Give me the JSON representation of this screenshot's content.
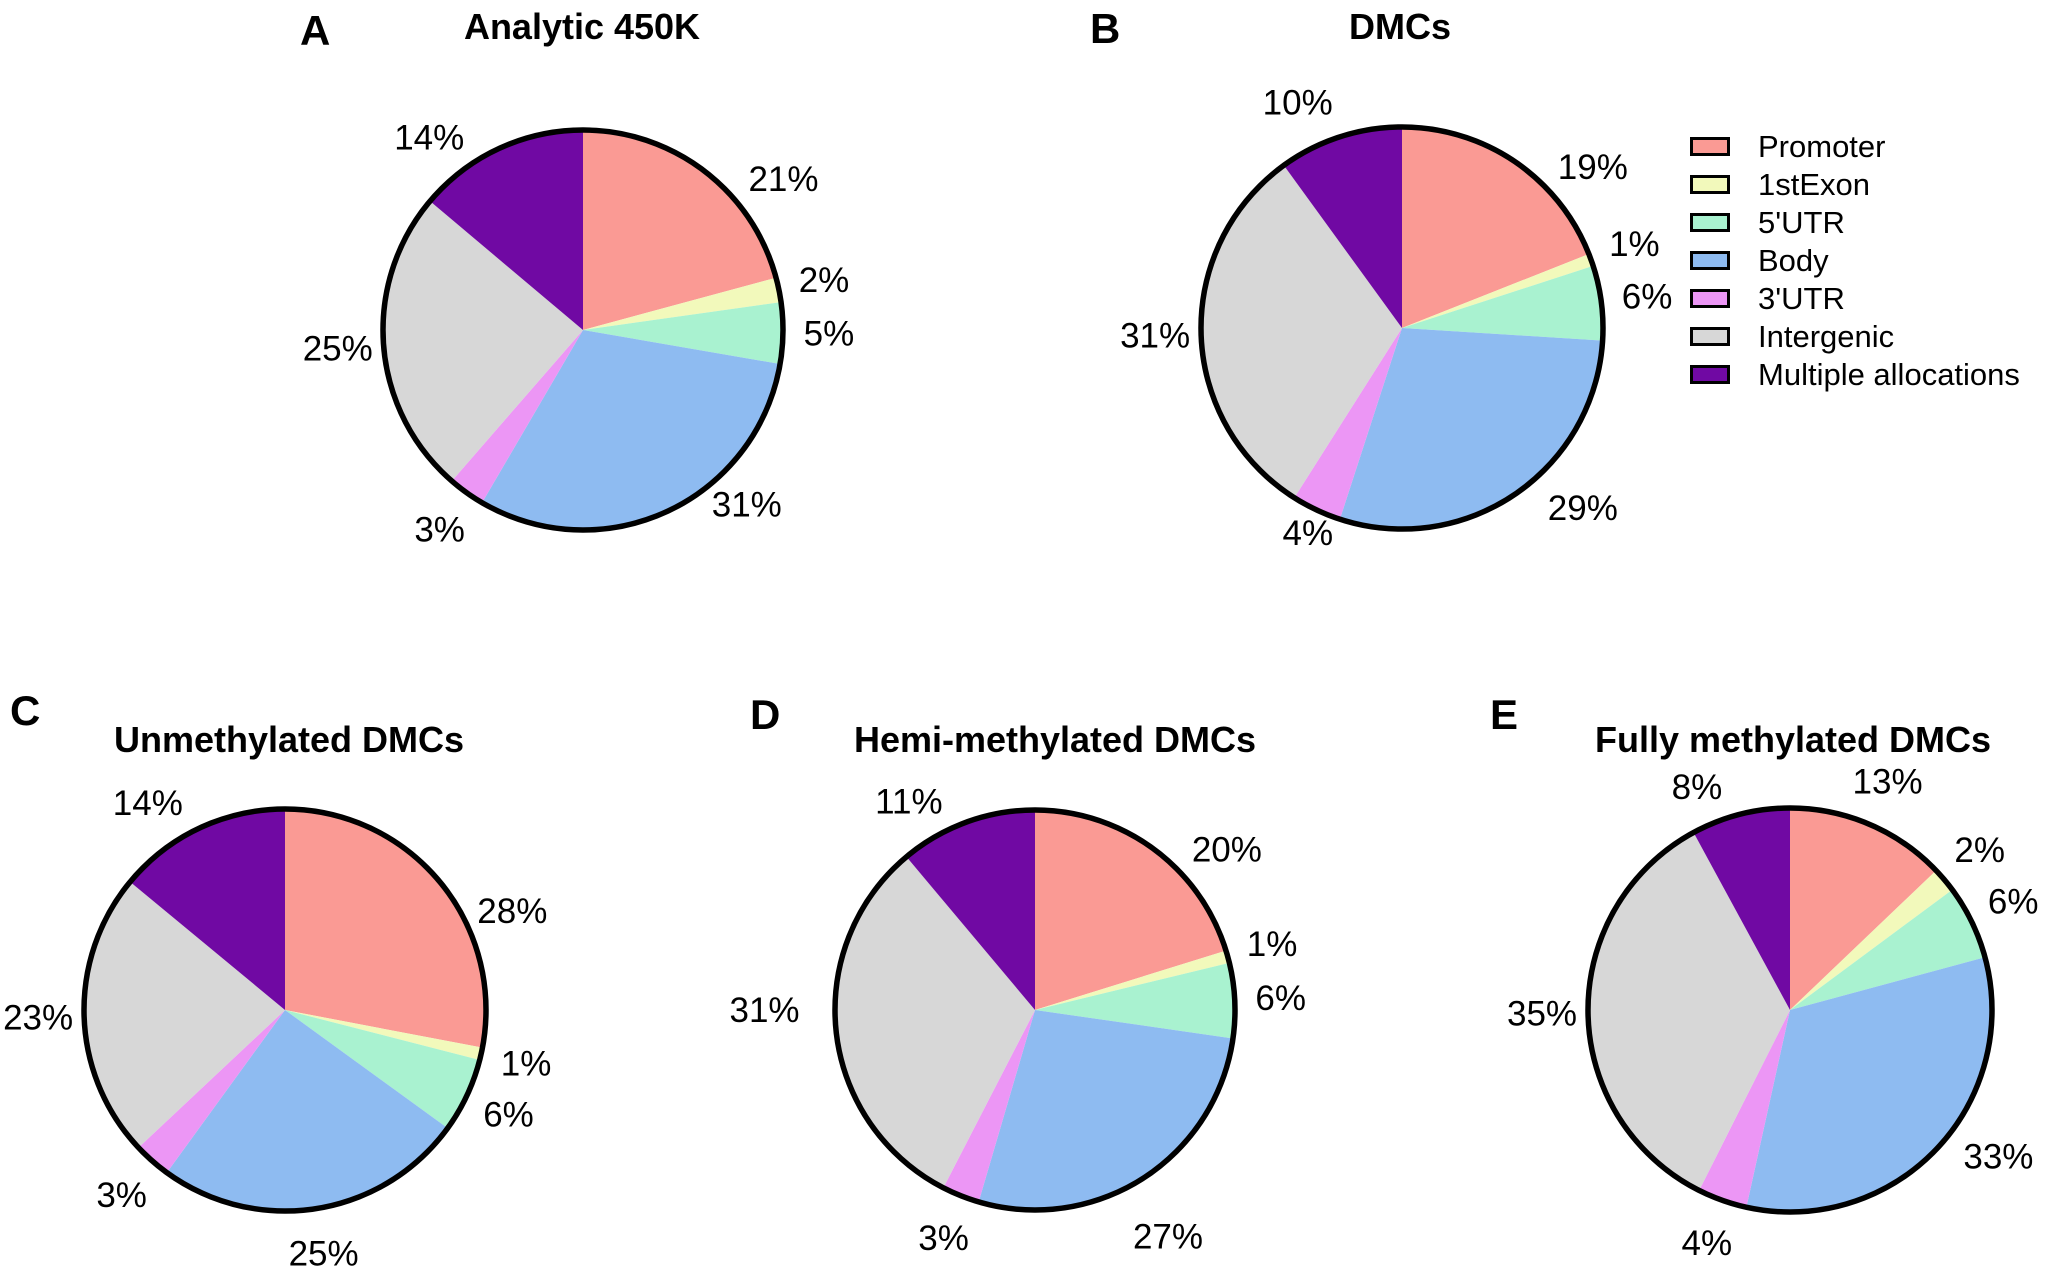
{
  "legend": {
    "position": "top-right",
    "items": [
      {
        "label": "Promoter",
        "color": "#FA9A94"
      },
      {
        "label": "1stExon",
        "color": "#F2F9BB"
      },
      {
        "label": "5'UTR",
        "color": "#A9F2D0"
      },
      {
        "label": "Body",
        "color": "#8EBBF1"
      },
      {
        "label": "3'UTR",
        "color": "#EC96F5"
      },
      {
        "label": "Intergenic",
        "color": "#D7D7D7"
      },
      {
        "label": "Multiple allocations",
        "color": "#7009A3"
      }
    ]
  },
  "chart_data": [
    {
      "type": "pie",
      "panel_letter": "A",
      "title": "Analytic 450K",
      "categories": [
        "Promoter",
        "1stExon",
        "5'UTR",
        "Body",
        "3'UTR",
        "Intergenic",
        "Multiple allocations"
      ],
      "values": [
        21,
        2,
        5,
        31,
        3,
        25,
        14
      ],
      "labels": [
        "21%",
        "2%",
        "5%",
        "31%",
        "3%",
        "25%",
        "14%"
      ],
      "start_angle_deg": 0,
      "direction": "clockwise",
      "legend_position": "shared top-right"
    },
    {
      "type": "pie",
      "panel_letter": "B",
      "title": "DMCs",
      "categories": [
        "Promoter",
        "1stExon",
        "5'UTR",
        "Body",
        "3'UTR",
        "Intergenic",
        "Multiple allocations"
      ],
      "values": [
        19,
        1,
        6,
        29,
        4,
        31,
        10
      ],
      "labels": [
        "19%",
        "1%",
        "6%",
        "29%",
        "4%",
        "31%",
        "10%"
      ],
      "start_angle_deg": 0,
      "direction": "clockwise",
      "legend_position": "shared top-right"
    },
    {
      "type": "pie",
      "panel_letter": "C",
      "title": "Unmethylated DMCs",
      "categories": [
        "Promoter",
        "1stExon",
        "5'UTR",
        "Body",
        "3'UTR",
        "Intergenic",
        "Multiple allocations"
      ],
      "values": [
        28,
        1,
        6,
        25,
        3,
        23,
        14
      ],
      "labels": [
        "28%",
        "1%",
        "6%",
        "25%",
        "3%",
        "23%",
        "14%"
      ],
      "start_angle_deg": 0,
      "direction": "clockwise",
      "legend_position": "shared top-right"
    },
    {
      "type": "pie",
      "panel_letter": "D",
      "title": "Hemi-methylated DMCs",
      "categories": [
        "Promoter",
        "1stExon",
        "5'UTR",
        "Body",
        "3'UTR",
        "Intergenic",
        "Multiple allocations"
      ],
      "values": [
        20,
        1,
        6,
        27,
        3,
        31,
        11
      ],
      "labels": [
        "20%",
        "1%",
        "6%",
        "27%",
        "3%",
        "31%",
        "11%"
      ],
      "start_angle_deg": 0,
      "direction": "clockwise",
      "legend_position": "shared top-right"
    },
    {
      "type": "pie",
      "panel_letter": "E",
      "title": "Fully methylated DMCs",
      "categories": [
        "Promoter",
        "1stExon",
        "5'UTR",
        "Body",
        "3'UTR",
        "Intergenic",
        "Multiple allocations"
      ],
      "values": [
        13,
        2,
        6,
        33,
        4,
        35,
        8
      ],
      "labels": [
        "13%",
        "2%",
        "6%",
        "33%",
        "4%",
        "35%",
        "8%"
      ],
      "start_angle_deg": 0,
      "direction": "clockwise",
      "legend_position": "shared top-right"
    }
  ]
}
